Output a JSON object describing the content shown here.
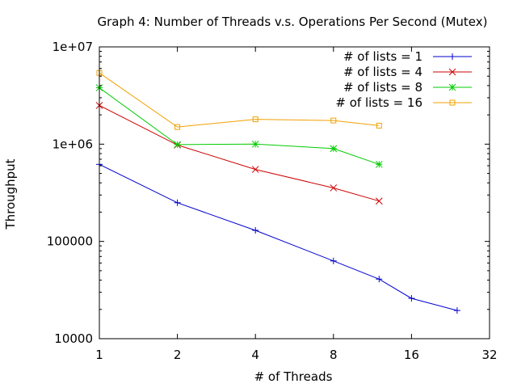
{
  "chart_data": {
    "type": "line",
    "title": "Graph 4: Number of Threads v.s. Operations Per Second (Mutex)",
    "xlabel": "# of Threads",
    "ylabel": "Throughput",
    "x_scale": "log2",
    "y_scale": "log10",
    "xlim": [
      1,
      32
    ],
    "ylim": [
      10000,
      10000000
    ],
    "x_ticks": [
      1,
      2,
      4,
      8,
      16,
      32
    ],
    "x_tick_labels": [
      "1",
      "2",
      "4",
      "8",
      "16",
      "32"
    ],
    "y_ticks": [
      10000,
      100000,
      1000000,
      10000000
    ],
    "y_tick_labels": [
      "10000",
      "100000",
      "1e+06",
      "1e+07"
    ],
    "grid": false,
    "legend_position": "top-right",
    "series": [
      {
        "name": "# of lists = 1",
        "color": "#0000cc",
        "marker": "plus",
        "x": [
          1,
          2,
          4,
          8,
          12,
          16,
          24
        ],
        "y": [
          620000,
          250000,
          130000,
          63000,
          41000,
          26000,
          19500
        ]
      },
      {
        "name": "# of lists = 4",
        "color": "#cc0000",
        "marker": "cross",
        "x": [
          1,
          2,
          4,
          8,
          12
        ],
        "y": [
          2500000,
          980000,
          550000,
          355000,
          260000
        ]
      },
      {
        "name": "# of lists = 8",
        "color": "#00cc00",
        "marker": "star",
        "x": [
          1,
          2,
          4,
          8,
          12
        ],
        "y": [
          3800000,
          990000,
          1000000,
          900000,
          620000
        ]
      },
      {
        "name": "# of lists = 16",
        "color": "#f0a000",
        "marker": "square",
        "x": [
          1,
          2,
          4,
          8,
          12
        ],
        "y": [
          5400000,
          1500000,
          1800000,
          1750000,
          1550000
        ]
      }
    ]
  }
}
